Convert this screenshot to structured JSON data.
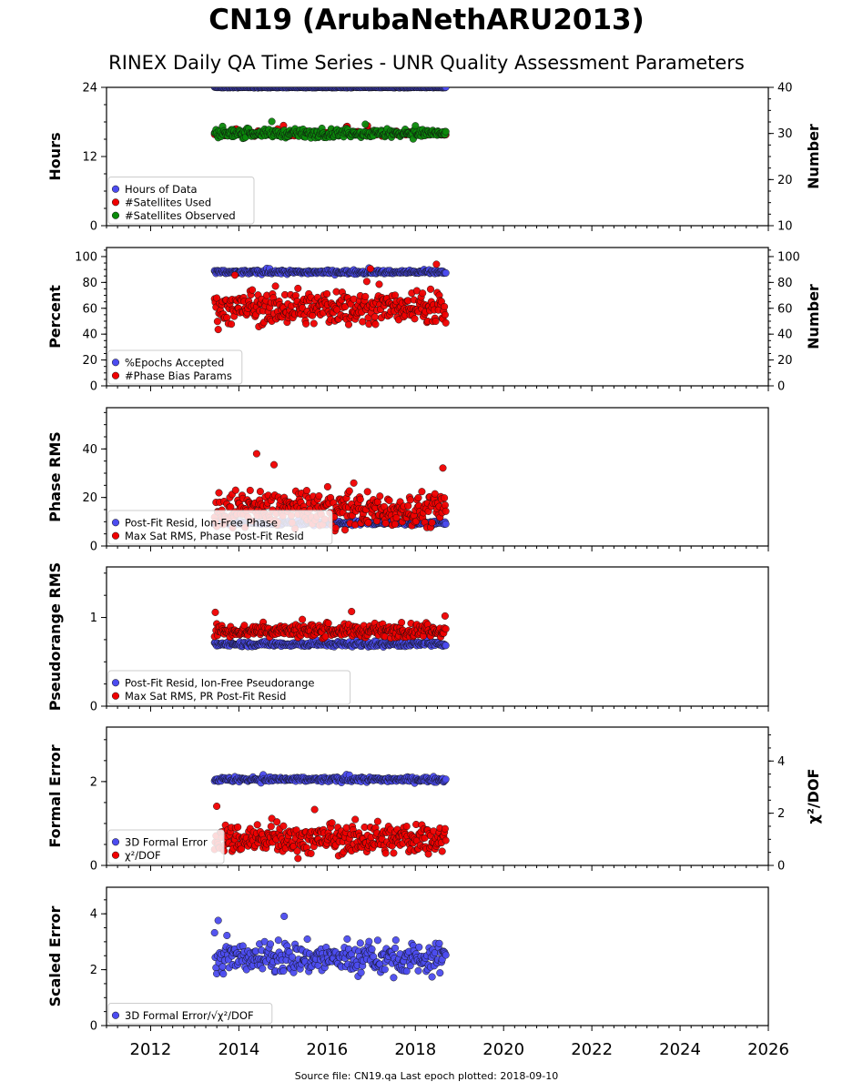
{
  "title": "CN19 (ArubaNethARU2013)",
  "subtitle": "RINEX Daily QA Time Series - UNR Quality Assessment Parameters",
  "footer": "Source file: CN19.qa Last epoch plotted: 2018-09-10",
  "colors": {
    "blue": "#4c4cf0",
    "red": "#f00000",
    "green": "#0a8a0a",
    "edge": "#111111"
  },
  "chart_data": {
    "type": "scatter",
    "x_axis": {
      "xlim": [
        2011.0,
        2026.0
      ],
      "ticks": [
        2012,
        2014,
        2016,
        2018,
        2020,
        2022,
        2024,
        2026
      ],
      "tick_labels": [
        "2012",
        "2014",
        "2016",
        "2018",
        "2020",
        "2022",
        "2024",
        "2026"
      ],
      "data_start": 2013.45,
      "data_end": 2018.69
    },
    "panels": [
      {
        "id": "hours",
        "ylabel": "Hours",
        "ylim": [
          0,
          24
        ],
        "yticks": [
          0,
          12,
          24
        ],
        "ytick_labels": [
          "0",
          "12",
          "24"
        ],
        "right_ylabel": "Number",
        "right_ylim": [
          10,
          40
        ],
        "right_yticks": [
          10,
          20,
          30,
          40
        ],
        "right_ytick_labels": [
          "10",
          "20",
          "30",
          "40"
        ],
        "legend_position": "lower-left",
        "series": [
          {
            "name": "Hours of Data",
            "color": "blue",
            "axis": "left",
            "typical": 24.0,
            "spread": 0.05
          },
          {
            "name": "#Satellites Used",
            "color": "red",
            "axis": "right",
            "typical": 30.0,
            "spread": 0.4
          },
          {
            "name": "#Satellites Observed",
            "color": "green",
            "axis": "right",
            "typical": 30.0,
            "spread": 0.6
          }
        ]
      },
      {
        "id": "percent",
        "ylabel": "Percent",
        "ylim": [
          0,
          107
        ],
        "yticks": [
          0,
          20,
          40,
          60,
          80,
          100
        ],
        "ytick_labels": [
          "0",
          "20",
          "40",
          "60",
          "80",
          "100"
        ],
        "right_ylabel": "Number",
        "right_ylim": [
          0,
          107
        ],
        "right_yticks": [
          0,
          20,
          40,
          60,
          80,
          100
        ],
        "right_ytick_labels": [
          "0",
          "20",
          "40",
          "60",
          "80",
          "100"
        ],
        "legend_position": "lower-left",
        "series": [
          {
            "name": "%Epochs Accepted",
            "color": "blue",
            "axis": "left",
            "typical": 88.0,
            "spread": 1.0
          },
          {
            "name": "#Phase Bias Params",
            "color": "red",
            "axis": "right",
            "typical": 60.0,
            "spread": 9.0
          }
        ]
      },
      {
        "id": "phase",
        "ylabel": "Phase RMS",
        "ylim": [
          0,
          57
        ],
        "yticks": [
          0,
          20,
          40
        ],
        "ytick_labels": [
          "0",
          "20",
          "40"
        ],
        "legend_position": "lower-left",
        "series": [
          {
            "name": "Post-Fit Resid, Ion-Free Phase",
            "color": "blue",
            "axis": "left",
            "typical": 9.5,
            "spread": 0.6
          },
          {
            "name": "Max Sat RMS, Phase Post-Fit Resid",
            "color": "red",
            "axis": "left",
            "typical": 15.0,
            "spread": 5.0
          }
        ]
      },
      {
        "id": "pseudorange",
        "ylabel": "Pseudorange RMS",
        "ylim": [
          0,
          1.57
        ],
        "yticks": [
          0,
          1
        ],
        "ytick_labels": [
          "0",
          "1"
        ],
        "legend_position": "lower-left",
        "series": [
          {
            "name": "Post-Fit Resid, Ion-Free Pseudorange",
            "color": "blue",
            "axis": "left",
            "typical": 0.7,
            "spread": 0.02
          },
          {
            "name": "Max Sat RMS, PR Post-Fit Resid",
            "color": "red",
            "axis": "left",
            "typical": 0.85,
            "spread": 0.05
          }
        ]
      },
      {
        "id": "formal",
        "ylabel": "Formal Error",
        "ylim": [
          0,
          3.3
        ],
        "yticks": [
          0,
          2
        ],
        "ytick_labels": [
          "0",
          "2"
        ],
        "right_ylabel": "χ²/DOF",
        "right_ylim": [
          0,
          5.3
        ],
        "right_yticks": [
          0,
          2,
          4
        ],
        "right_ytick_labels": [
          "0",
          "2",
          "4"
        ],
        "legend_position": "lower-left",
        "series": [
          {
            "name": "3D Formal Error",
            "color": "blue",
            "axis": "left",
            "typical": 2.05,
            "spread": 0.04
          },
          {
            "name": "χ²/DOF",
            "color": "red",
            "axis": "right",
            "typical": 1.0,
            "spread": 0.4
          }
        ]
      },
      {
        "id": "scaled",
        "ylabel": "Scaled Error",
        "ylim": [
          0,
          4.95
        ],
        "yticks": [
          0,
          2,
          4
        ],
        "ytick_labels": [
          "0",
          "2",
          "4"
        ],
        "legend_position": "lower-left",
        "series": [
          {
            "name": "3D Formal Error/√χ²/DOF",
            "color": "blue",
            "axis": "left",
            "typical": 2.4,
            "spread": 0.4
          }
        ]
      }
    ]
  }
}
